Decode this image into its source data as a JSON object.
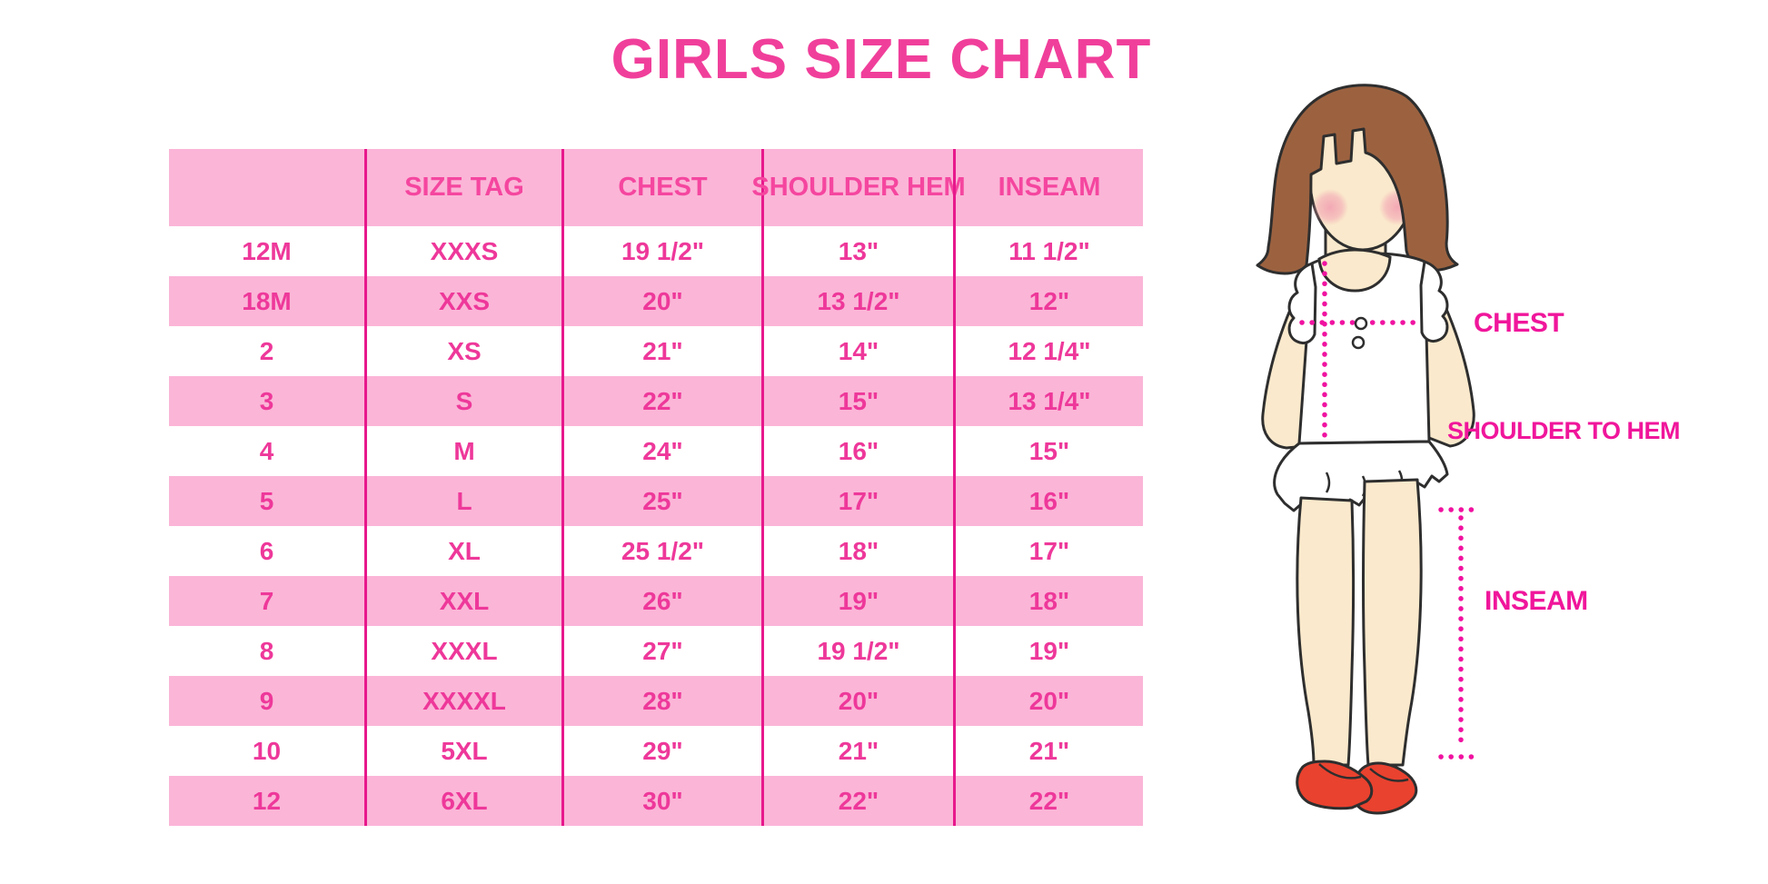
{
  "title": "GIRLS SIZE CHART",
  "chart_data": {
    "type": "table",
    "title": "GIRLS SIZE CHART",
    "columns": [
      "",
      "SIZE TAG",
      "CHEST",
      "SHOULDER HEM",
      "INSEAM"
    ],
    "rows": [
      [
        "12M",
        "XXXS",
        "19 1/2\"",
        "13\"",
        "11 1/2\""
      ],
      [
        "18M",
        "XXS",
        "20\"",
        "13 1/2\"",
        "12\""
      ],
      [
        "2",
        "XS",
        "21\"",
        "14\"",
        "12 1/4\""
      ],
      [
        "3",
        "S",
        "22\"",
        "15\"",
        "13 1/4\""
      ],
      [
        "4",
        "M",
        "24\"",
        "16\"",
        "15\""
      ],
      [
        "5",
        "L",
        "25\"",
        "17\"",
        "16\""
      ],
      [
        "6",
        "XL",
        "25 1/2\"",
        "18\"",
        "17\""
      ],
      [
        "7",
        "XXL",
        "26\"",
        "19\"",
        "18\""
      ],
      [
        "8",
        "XXXL",
        "27\"",
        "19 1/2\"",
        "19\""
      ],
      [
        "9",
        "XXXXL",
        "28\"",
        "20\"",
        "20\""
      ],
      [
        "10",
        "5XL",
        "29\"",
        "21\"",
        "21\""
      ],
      [
        "12",
        "6XL",
        "30\"",
        "22\"",
        "22\""
      ]
    ],
    "row_shading": "alternating white and pink, starting white after pink header",
    "legend_position": "none",
    "grid": "vertical magenta separators only"
  },
  "diagram": {
    "chest_label": "CHEST",
    "shoulder_to_hem_label": "SHOULDER TO HEM",
    "inseam_label": "INSEAM"
  },
  "colors": {
    "title_pink": "#F03F9B",
    "row_pink": "#FBB5D7",
    "separator_magenta": "#E7188C",
    "header_text_pink": "#F5469F",
    "cell_text_pink": "#EE389A",
    "label_magenta": "#F0169B",
    "dotted_line_magenta": "#F012A0",
    "hair_brown": "#9C6240",
    "skin": "#FAE9CC",
    "outline": "#2E2E2E",
    "shoe_red": "#E9422F",
    "blush_pink": "#F2A2B2"
  }
}
